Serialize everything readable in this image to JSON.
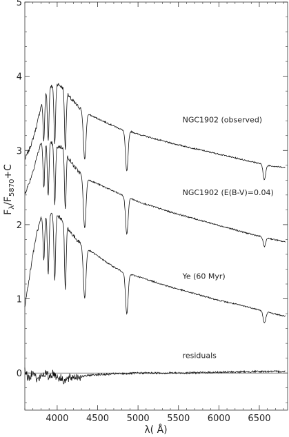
{
  "chart_data": {
    "type": "line",
    "xlabel": "λ( Å)",
    "ylabel_main": "F",
    "ylabel_sub1": "λ",
    "ylabel_mid": "/F",
    "ylabel_sub2": "5870",
    "ylabel_end": "+C",
    "xlim": [
      3600,
      6850
    ],
    "ylim": [
      -0.5,
      5
    ],
    "x_ticks": [
      4000,
      4500,
      5000,
      5500,
      6000,
      6500
    ],
    "x_tick_labels": [
      "4000",
      "4500",
      "5000",
      "5500",
      "6000",
      "6500"
    ],
    "y_ticks": [
      0,
      1,
      2,
      3,
      4,
      5
    ],
    "y_tick_labels": [
      "0",
      "1",
      "2",
      "3",
      "4",
      "5"
    ],
    "reference_line_y": 0,
    "series": [
      {
        "name": "NGC1902 (observed)",
        "points": [
          [
            3600,
            2.88
          ],
          [
            3650,
            3.0
          ],
          [
            3700,
            3.15
          ],
          [
            3750,
            3.35
          ],
          [
            3800,
            3.6
          ],
          [
            3850,
            3.78
          ],
          [
            3900,
            3.86
          ],
          [
            3950,
            3.88
          ],
          [
            4000,
            3.9
          ],
          [
            4050,
            3.86
          ],
          [
            4100,
            3.82
          ],
          [
            4150,
            3.72
          ],
          [
            4200,
            3.66
          ],
          [
            4250,
            3.6
          ],
          [
            4300,
            3.56
          ],
          [
            4400,
            3.48
          ],
          [
            4500,
            3.43
          ],
          [
            4600,
            3.38
          ],
          [
            4700,
            3.33
          ],
          [
            4800,
            3.28
          ],
          [
            4900,
            3.26
          ],
          [
            5000,
            3.22
          ],
          [
            5200,
            3.16
          ],
          [
            5400,
            3.1
          ],
          [
            5600,
            3.05
          ],
          [
            5800,
            3.0
          ],
          [
            6000,
            2.95
          ],
          [
            6200,
            2.9
          ],
          [
            6400,
            2.85
          ],
          [
            6600,
            2.8
          ],
          [
            6800,
            2.77
          ]
        ],
        "absorption_lines": [
          [
            3835,
            0.6
          ],
          [
            3889,
            0.7
          ],
          [
            3970,
            0.8
          ],
          [
            4101,
            0.8
          ],
          [
            4340,
            0.65
          ],
          [
            4861,
            0.55
          ],
          [
            6563,
            0.2
          ]
        ]
      },
      {
        "name": "NGC1902 (E(B-V)=0.04)",
        "points": [
          [
            3600,
            2.42
          ],
          [
            3650,
            2.55
          ],
          [
            3700,
            2.72
          ],
          [
            3750,
            2.92
          ],
          [
            3800,
            3.1
          ],
          [
            3850,
            3.08
          ],
          [
            3900,
            3.1
          ],
          [
            3950,
            3.1
          ],
          [
            4000,
            3.05
          ],
          [
            4050,
            3.05
          ],
          [
            4100,
            3.0
          ],
          [
            4150,
            2.88
          ],
          [
            4200,
            2.8
          ],
          [
            4250,
            2.73
          ],
          [
            4300,
            2.68
          ],
          [
            4400,
            2.6
          ],
          [
            4500,
            2.55
          ],
          [
            4600,
            2.5
          ],
          [
            4700,
            2.45
          ],
          [
            4800,
            2.4
          ],
          [
            4900,
            2.36
          ],
          [
            5000,
            2.31
          ],
          [
            5200,
            2.24
          ],
          [
            5400,
            2.17
          ],
          [
            5600,
            2.11
          ],
          [
            5800,
            2.05
          ],
          [
            6000,
            1.99
          ],
          [
            6200,
            1.93
          ],
          [
            6400,
            1.87
          ],
          [
            6600,
            1.82
          ],
          [
            6800,
            1.77
          ]
        ],
        "absorption_lines": [
          [
            3835,
            0.6
          ],
          [
            3889,
            0.7
          ],
          [
            3970,
            0.8
          ],
          [
            4101,
            0.8
          ],
          [
            4340,
            0.7
          ],
          [
            4861,
            0.5
          ],
          [
            6563,
            0.12
          ]
        ]
      },
      {
        "name": "Ye (60 Myr)",
        "points": [
          [
            3600,
            0.9
          ],
          [
            3650,
            1.25
          ],
          [
            3700,
            1.6
          ],
          [
            3750,
            1.9
          ],
          [
            3800,
            2.08
          ],
          [
            3850,
            2.12
          ],
          [
            3900,
            2.14
          ],
          [
            3950,
            2.14
          ],
          [
            4000,
            2.12
          ],
          [
            4050,
            2.08
          ],
          [
            4100,
            2.02
          ],
          [
            4150,
            1.92
          ],
          [
            4200,
            1.85
          ],
          [
            4250,
            1.79
          ],
          [
            4300,
            1.74
          ],
          [
            4400,
            1.65
          ],
          [
            4500,
            1.58
          ],
          [
            4600,
            1.5
          ],
          [
            4700,
            1.43
          ],
          [
            4800,
            1.37
          ],
          [
            4900,
            1.33
          ],
          [
            5000,
            1.3
          ],
          [
            5200,
            1.23
          ],
          [
            5400,
            1.16
          ],
          [
            5600,
            1.1
          ],
          [
            5800,
            1.04
          ],
          [
            6000,
            0.98
          ],
          [
            6200,
            0.93
          ],
          [
            6400,
            0.88
          ],
          [
            6600,
            0.82
          ],
          [
            6800,
            0.77
          ]
        ],
        "absorption_lines": [
          [
            3835,
            0.6
          ],
          [
            3889,
            0.8
          ],
          [
            3970,
            0.9
          ],
          [
            4101,
            0.9
          ],
          [
            4340,
            0.7
          ],
          [
            4861,
            0.55
          ],
          [
            6563,
            0.16
          ]
        ]
      },
      {
        "name": "residuals",
        "points": [
          [
            3600,
            0.05
          ],
          [
            3650,
            -0.1
          ],
          [
            3700,
            0.05
          ],
          [
            3750,
            -0.1
          ],
          [
            3800,
            -0.05
          ],
          [
            3850,
            0.0
          ],
          [
            3900,
            -0.05
          ],
          [
            3950,
            0.0
          ],
          [
            4000,
            -0.05
          ],
          [
            4100,
            -0.1
          ],
          [
            4200,
            -0.05
          ],
          [
            4300,
            -0.05
          ],
          [
            4400,
            -0.03
          ],
          [
            4500,
            -0.02
          ],
          [
            4600,
            -0.02
          ],
          [
            4700,
            -0.01
          ],
          [
            4800,
            -0.01
          ],
          [
            5000,
            0.0
          ],
          [
            5500,
            0.0
          ],
          [
            6000,
            0.01
          ],
          [
            6500,
            0.02
          ],
          [
            6800,
            0.02
          ]
        ]
      }
    ],
    "series_labels": [
      {
        "text": "NGC1902 (observed)",
        "x": 5550,
        "y": 3.38
      },
      {
        "text": "NGC1902 (E(B-V)=0.04)",
        "x": 5550,
        "y": 2.4
      },
      {
        "text": "Ye (60 Myr)",
        "x": 5550,
        "y": 1.27
      },
      {
        "text": "residuals",
        "x": 5550,
        "y": 0.2
      }
    ]
  }
}
